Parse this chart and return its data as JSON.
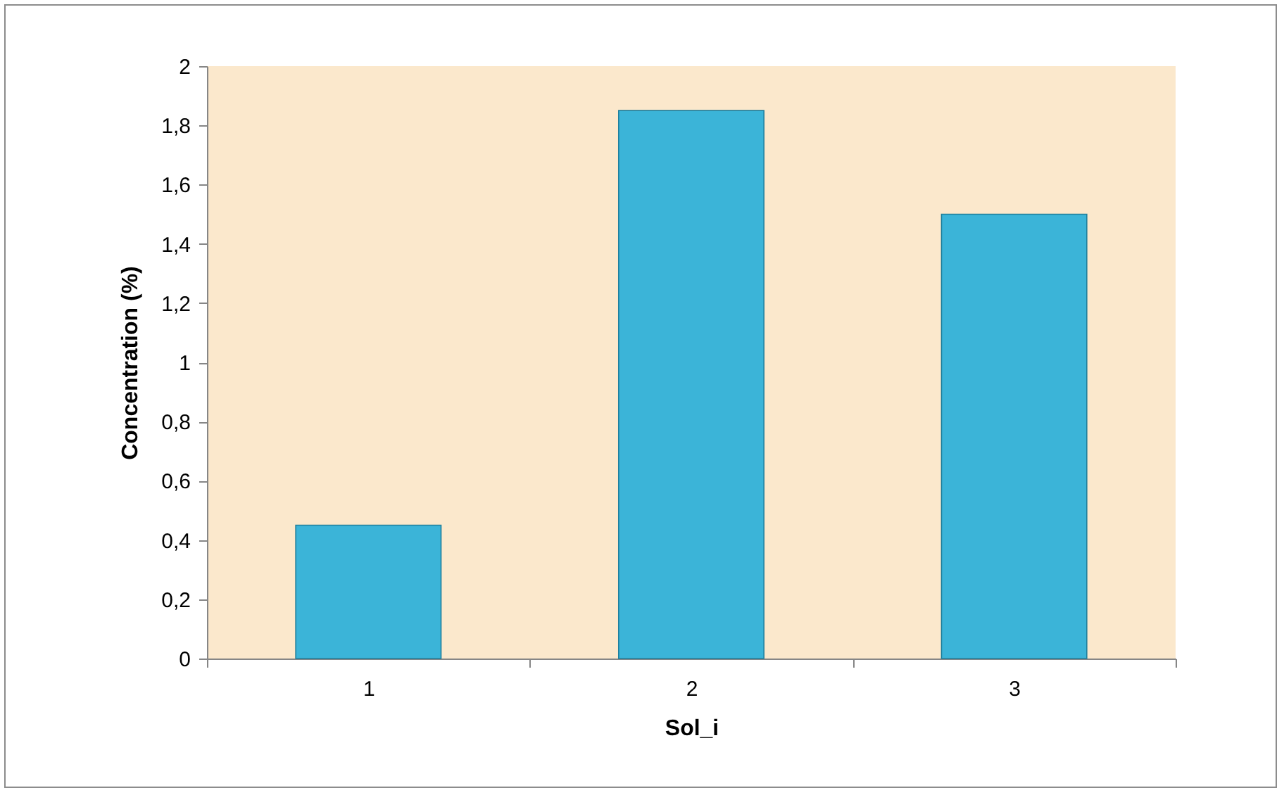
{
  "chart_data": {
    "type": "bar",
    "xlabel": "Sol_i",
    "ylabel": "Concentration (%)",
    "categories": [
      "1",
      "2",
      "3"
    ],
    "values": [
      0.45,
      1.85,
      1.5
    ],
    "color": "#3bb4d8",
    "ylim": [
      0,
      2
    ],
    "yticks": [
      0,
      {
        "value": 0.2,
        "label": "0,2"
      },
      {
        "value": 0.4,
        "label": "0,4"
      },
      {
        "value": 0.6,
        "label": "0,6"
      },
      {
        "value": 0.8,
        "label": "0,8"
      },
      1,
      {
        "value": 1.2,
        "label": "1,2"
      },
      {
        "value": 1.4,
        "label": "1,4"
      },
      {
        "value": 1.6,
        "label": "1,6"
      },
      {
        "value": 1.8,
        "label": "1,8"
      },
      2
    ],
    "grid": false
  }
}
